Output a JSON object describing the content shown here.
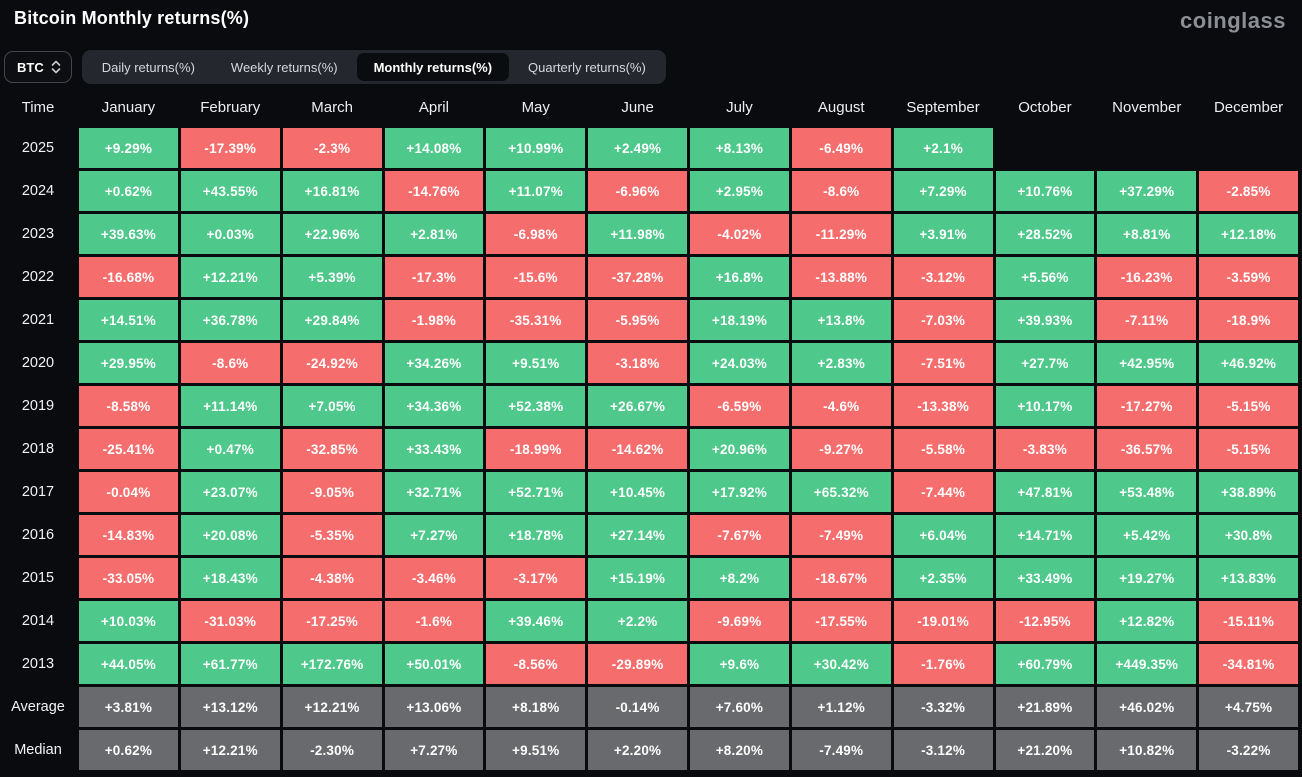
{
  "header": {
    "title": "Bitcoin Monthly returns(%)",
    "logo": "coinglass"
  },
  "controls": {
    "symbol_select": {
      "value": "BTC",
      "icon": "updown-chevron-icon"
    },
    "tabs": [
      {
        "label": "Daily returns(%)",
        "active": false
      },
      {
        "label": "Weekly returns(%)",
        "active": false
      },
      {
        "label": "Monthly returns(%)",
        "active": true
      },
      {
        "label": "Quarterly returns(%)",
        "active": false
      }
    ]
  },
  "colors": {
    "positive": "#4ec88b",
    "negative": "#f66d6d",
    "summary_row": "#696a6d",
    "background": "#0a0b0e",
    "tab_bar": "#24272e",
    "active_tab": "#0b0c0f"
  },
  "chart_data": {
    "type": "heatmap",
    "title": "Bitcoin Monthly returns(%)",
    "columns": [
      "Time",
      "January",
      "February",
      "March",
      "April",
      "May",
      "June",
      "July",
      "August",
      "September",
      "October",
      "November",
      "December"
    ],
    "rows": [
      {
        "label": "2025",
        "summary": false,
        "values": [
          "+9.29%",
          "-17.39%",
          "-2.3%",
          "+14.08%",
          "+10.99%",
          "+2.49%",
          "+8.13%",
          "-6.49%",
          "+2.1%",
          null,
          null,
          null
        ]
      },
      {
        "label": "2024",
        "summary": false,
        "values": [
          "+0.62%",
          "+43.55%",
          "+16.81%",
          "-14.76%",
          "+11.07%",
          "-6.96%",
          "+2.95%",
          "-8.6%",
          "+7.29%",
          "+10.76%",
          "+37.29%",
          "-2.85%"
        ]
      },
      {
        "label": "2023",
        "summary": false,
        "values": [
          "+39.63%",
          "+0.03%",
          "+22.96%",
          "+2.81%",
          "-6.98%",
          "+11.98%",
          "-4.02%",
          "-11.29%",
          "+3.91%",
          "+28.52%",
          "+8.81%",
          "+12.18%"
        ]
      },
      {
        "label": "2022",
        "summary": false,
        "values": [
          "-16.68%",
          "+12.21%",
          "+5.39%",
          "-17.3%",
          "-15.6%",
          "-37.28%",
          "+16.8%",
          "-13.88%",
          "-3.12%",
          "+5.56%",
          "-16.23%",
          "-3.59%"
        ]
      },
      {
        "label": "2021",
        "summary": false,
        "values": [
          "+14.51%",
          "+36.78%",
          "+29.84%",
          "-1.98%",
          "-35.31%",
          "-5.95%",
          "+18.19%",
          "+13.8%",
          "-7.03%",
          "+39.93%",
          "-7.11%",
          "-18.9%"
        ]
      },
      {
        "label": "2020",
        "summary": false,
        "values": [
          "+29.95%",
          "-8.6%",
          "-24.92%",
          "+34.26%",
          "+9.51%",
          "-3.18%",
          "+24.03%",
          "+2.83%",
          "-7.51%",
          "+27.7%",
          "+42.95%",
          "+46.92%"
        ]
      },
      {
        "label": "2019",
        "summary": false,
        "values": [
          "-8.58%",
          "+11.14%",
          "+7.05%",
          "+34.36%",
          "+52.38%",
          "+26.67%",
          "-6.59%",
          "-4.6%",
          "-13.38%",
          "+10.17%",
          "-17.27%",
          "-5.15%"
        ]
      },
      {
        "label": "2018",
        "summary": false,
        "values": [
          "-25.41%",
          "+0.47%",
          "-32.85%",
          "+33.43%",
          "-18.99%",
          "-14.62%",
          "+20.96%",
          "-9.27%",
          "-5.58%",
          "-3.83%",
          "-36.57%",
          "-5.15%"
        ]
      },
      {
        "label": "2017",
        "summary": false,
        "values": [
          "-0.04%",
          "+23.07%",
          "-9.05%",
          "+32.71%",
          "+52.71%",
          "+10.45%",
          "+17.92%",
          "+65.32%",
          "-7.44%",
          "+47.81%",
          "+53.48%",
          "+38.89%"
        ]
      },
      {
        "label": "2016",
        "summary": false,
        "values": [
          "-14.83%",
          "+20.08%",
          "-5.35%",
          "+7.27%",
          "+18.78%",
          "+27.14%",
          "-7.67%",
          "-7.49%",
          "+6.04%",
          "+14.71%",
          "+5.42%",
          "+30.8%"
        ]
      },
      {
        "label": "2015",
        "summary": false,
        "values": [
          "-33.05%",
          "+18.43%",
          "-4.38%",
          "-3.46%",
          "-3.17%",
          "+15.19%",
          "+8.2%",
          "-18.67%",
          "+2.35%",
          "+33.49%",
          "+19.27%",
          "+13.83%"
        ]
      },
      {
        "label": "2014",
        "summary": false,
        "values": [
          "+10.03%",
          "-31.03%",
          "-17.25%",
          "-1.6%",
          "+39.46%",
          "+2.2%",
          "-9.69%",
          "-17.55%",
          "-19.01%",
          "-12.95%",
          "+12.82%",
          "-15.11%"
        ]
      },
      {
        "label": "2013",
        "summary": false,
        "values": [
          "+44.05%",
          "+61.77%",
          "+172.76%",
          "+50.01%",
          "-8.56%",
          "-29.89%",
          "+9.6%",
          "+30.42%",
          "-1.76%",
          "+60.79%",
          "+449.35%",
          "-34.81%"
        ]
      },
      {
        "label": "Average",
        "summary": true,
        "values": [
          "+3.81%",
          "+13.12%",
          "+12.21%",
          "+13.06%",
          "+8.18%",
          "-0.14%",
          "+7.60%",
          "+1.12%",
          "-3.32%",
          "+21.89%",
          "+46.02%",
          "+4.75%"
        ]
      },
      {
        "label": "Median",
        "summary": true,
        "values": [
          "+0.62%",
          "+12.21%",
          "-2.30%",
          "+7.27%",
          "+9.51%",
          "+2.20%",
          "+8.20%",
          "-7.49%",
          "-3.12%",
          "+21.20%",
          "+10.82%",
          "-3.22%"
        ]
      }
    ]
  }
}
